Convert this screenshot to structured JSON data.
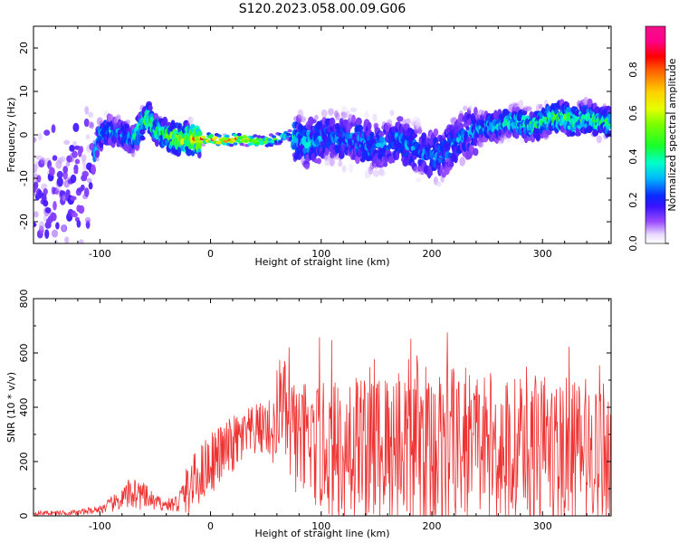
{
  "title": "S120.2023.058.00.09.G06",
  "chart_data": [
    {
      "type": "heatmap",
      "xlabel": "Height of straight line (km)",
      "ylabel": "Frequency (Hz)",
      "xlim": [
        -160,
        362
      ],
      "ylim": [
        -25,
        25
      ],
      "xticks": [
        -100,
        0,
        100,
        200,
        300
      ],
      "xtick_labels": [
        "-100",
        "0",
        "100",
        "200",
        "300"
      ],
      "yticks": [
        -20,
        -10,
        0,
        10,
        20
      ],
      "ytick_labels": [
        "-20",
        "-10",
        "0",
        "10",
        "20"
      ],
      "colorbar": {
        "label": "Normalized spectral amplitude",
        "range": [
          0,
          1
        ],
        "ticks": [
          0.0,
          0.2,
          0.4,
          0.6,
          0.8
        ],
        "tick_labels": [
          "0.0",
          "0.2",
          "0.4",
          "0.6",
          "0.8"
        ],
        "colormap": "gist_ncar"
      },
      "ridge": {
        "x": [
          -160,
          -140,
          -120,
          -110,
          -100,
          -90,
          -80,
          -70,
          -60,
          -55,
          -50,
          -40,
          -30,
          -20,
          -10,
          0,
          10,
          20,
          30,
          40,
          50,
          60,
          70,
          80,
          90,
          100,
          110,
          120,
          130,
          140,
          150,
          160,
          170,
          180,
          190,
          200,
          210,
          220,
          230,
          240,
          250,
          260,
          270,
          280,
          290,
          300,
          310,
          320,
          330,
          340,
          350,
          360
        ],
        "y": [
          -14,
          -13,
          -12,
          -10,
          0,
          1,
          0,
          -1,
          3,
          4,
          1,
          0,
          -1,
          -1,
          -1,
          -1,
          -1.5,
          -1,
          -1,
          -1.5,
          -1.5,
          -1,
          0,
          -1,
          -2,
          -1,
          0,
          -1,
          -1,
          -2,
          -3,
          -2,
          -1,
          -3,
          -4,
          -5,
          -4,
          -2,
          0,
          1,
          2,
          2,
          3,
          3,
          2,
          3,
          4,
          4,
          3,
          4,
          3,
          3
        ],
        "peak_amplitude": [
          0.1,
          0.15,
          0.2,
          0.3,
          0.35,
          0.35,
          0.3,
          0.35,
          0.5,
          0.55,
          0.45,
          0.5,
          0.6,
          0.7,
          0.85,
          0.95,
          0.9,
          0.85,
          0.8,
          0.7,
          0.65,
          0.55,
          0.4,
          0.35,
          0.35,
          0.3,
          0.3,
          0.3,
          0.3,
          0.3,
          0.3,
          0.3,
          0.3,
          0.3,
          0.3,
          0.3,
          0.3,
          0.3,
          0.3,
          0.3,
          0.35,
          0.35,
          0.4,
          0.4,
          0.45,
          0.45,
          0.5,
          0.5,
          0.5,
          0.45,
          0.45,
          0.45
        ]
      }
    },
    {
      "type": "line",
      "xlabel": "Height of straight line (km)",
      "ylabel": "SNR (10 * v/v)",
      "xlim": [
        -160,
        362
      ],
      "ylim": [
        0,
        800
      ],
      "xticks": [
        -100,
        0,
        100,
        200,
        300
      ],
      "xtick_labels": [
        "-100",
        "0",
        "100",
        "200",
        "300"
      ],
      "yticks": [
        0,
        200,
        400,
        600,
        800
      ],
      "ytick_labels": [
        "0",
        "200",
        "400",
        "600",
        "800"
      ],
      "series": [
        {
          "color": "#ee3333",
          "envelope": {
            "x": [
              -160,
              -120,
              -100,
              -90,
              -80,
              -70,
              -60,
              -50,
              -40,
              -30,
              -20,
              -10,
              0,
              10,
              20,
              30,
              40,
              50,
              55,
              60,
              63,
              65,
              70,
              80,
              90,
              100,
              110,
              120,
              130,
              140,
              150,
              160,
              170,
              180,
              190,
              200,
              210,
              220,
              230,
              240,
              250,
              260,
              270,
              280,
              290,
              300,
              310,
              320,
              330,
              340,
              350,
              360
            ],
            "mean": [
              10,
              12,
              25,
              40,
              60,
              90,
              70,
              50,
              40,
              45,
              100,
              150,
              200,
              230,
              260,
              290,
              310,
              330,
              310,
              300,
              450,
              430,
              320,
              280,
              260,
              250,
              240,
              250,
              240,
              260,
              250,
              240,
              260,
              260,
              250,
              250,
              240,
              240,
              240,
              250,
              240,
              240,
              230,
              240,
              230,
              230,
              240,
              230,
              230,
              230,
              240,
              230
            ],
            "spread": [
              8,
              10,
              15,
              30,
              40,
              70,
              50,
              30,
              20,
              40,
              100,
              110,
              120,
              110,
              110,
              100,
              100,
              100,
              120,
              150,
              170,
              180,
              200,
              220,
              230,
              240,
              250,
              280,
              300,
              300,
              300,
              310,
              320,
              330,
              320,
              310,
              310,
              300,
              300,
              300,
              290,
              290,
              290,
              290,
              290,
              290,
              280,
              280,
              280,
              280,
              280,
              280
            ]
          }
        }
      ]
    }
  ]
}
